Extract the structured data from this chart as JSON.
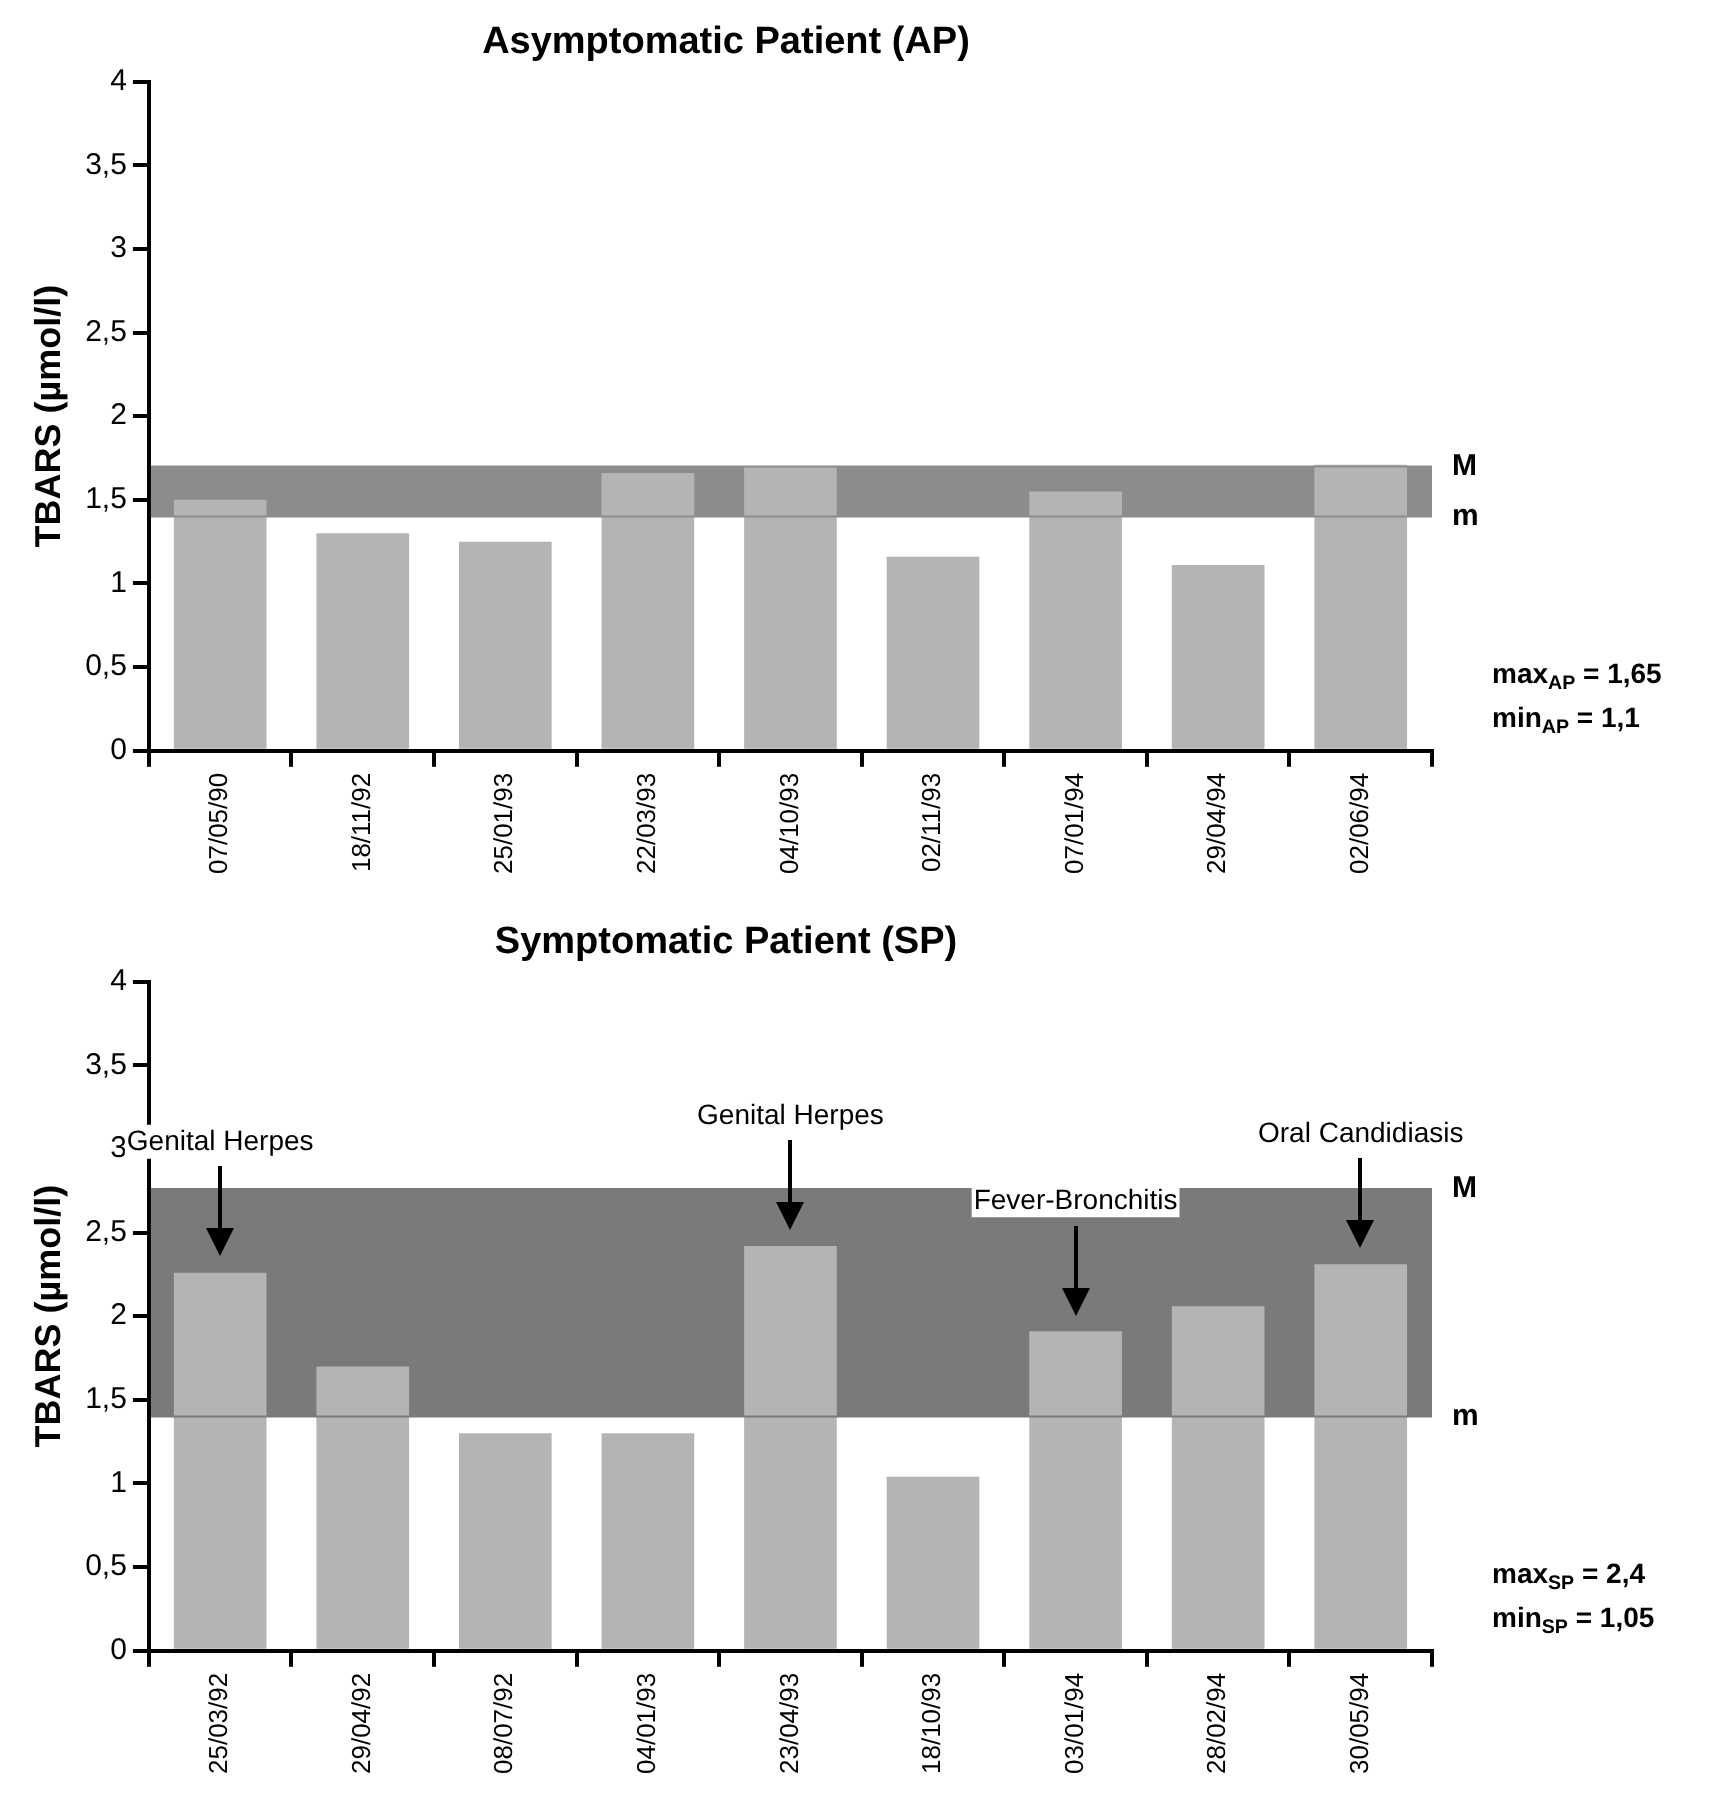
{
  "chart_data": [
    {
      "type": "bar",
      "title": "Asymptomatic Patient (AP)",
      "ylabel": "TBARS (µmol/l)",
      "categories": [
        "07/05/90",
        "18/11/92",
        "25/01/93",
        "22/03/93",
        "04/10/93",
        "02/11/93",
        "07/01/94",
        "29/04/94",
        "02/06/94"
      ],
      "values": [
        1.5,
        1.3,
        1.25,
        1.66,
        1.7,
        1.16,
        1.55,
        1.11,
        1.71
      ],
      "color": "#b4b4b4",
      "ylim": [
        0,
        4
      ],
      "yticks": [
        0,
        {
          "value": 0.5,
          "label": "0,5"
        },
        1,
        {
          "value": 1.5,
          "label": "1,5"
        },
        2,
        {
          "value": 2.5,
          "label": "2,5"
        },
        3,
        {
          "value": 3.5,
          "label": "3,5"
        },
        4
      ],
      "bands": [
        {
          "axis": "y",
          "from": 1.4,
          "to": 1.7,
          "color": "#8c8c8c"
        }
      ],
      "ref_lines": [
        {
          "axis": "y",
          "value": 1.7,
          "label": "M",
          "color": "#8c8c8c"
        },
        {
          "axis": "y",
          "value": 1.4,
          "label": "m",
          "color": "#8c8c8c"
        }
      ],
      "annotations": [
        "max$_{AP}$ = 1,65",
        "min$_{AP}$ = 1,1"
      ]
    },
    {
      "type": "bar",
      "title": "Symptomatic Patient (SP)",
      "ylabel": "TBARS (µmol/l)",
      "categories": [
        "25/03/92",
        "29/04/92",
        "08/07/92",
        "04/01/93",
        "23/04/93",
        "18/10/93",
        "03/01/94",
        "28/02/94",
        "30/05/94"
      ],
      "values": [
        2.26,
        1.7,
        1.3,
        1.3,
        2.42,
        1.04,
        1.91,
        2.06,
        2.31
      ],
      "color": "#b4b4b4",
      "ylim": [
        0,
        4
      ],
      "yticks": [
        0,
        {
          "value": 0.5,
          "label": "0,5"
        },
        1,
        {
          "value": 1.5,
          "label": "1,5"
        },
        2,
        {
          "value": 2.5,
          "label": "2,5"
        },
        3,
        {
          "value": 3.5,
          "label": "3,5"
        },
        4
      ],
      "bands": [
        {
          "axis": "y",
          "from": 1.4,
          "to": 2.76,
          "color": "#7a7a7a"
        }
      ],
      "ref_lines": [
        {
          "axis": "y",
          "value": 2.76,
          "label": "M",
          "color": "#7a7a7a"
        },
        {
          "axis": "y",
          "value": 1.4,
          "label": "m",
          "color": "#7a7a7a"
        }
      ],
      "annotations": [
        {
          "text": "Genital Herpes",
          "x": "25/03/92"
        },
        {
          "text": "Genital Herpes",
          "x": "23/04/93"
        },
        {
          "text": "Fever-Bronchitis",
          "x": "03/01/94"
        },
        {
          "text": "Oral Candidiasis",
          "x": "30/05/94"
        },
        "max$_{SP}$ = 2,4",
        "min$_{SP}$ = 1,05"
      ]
    }
  ]
}
